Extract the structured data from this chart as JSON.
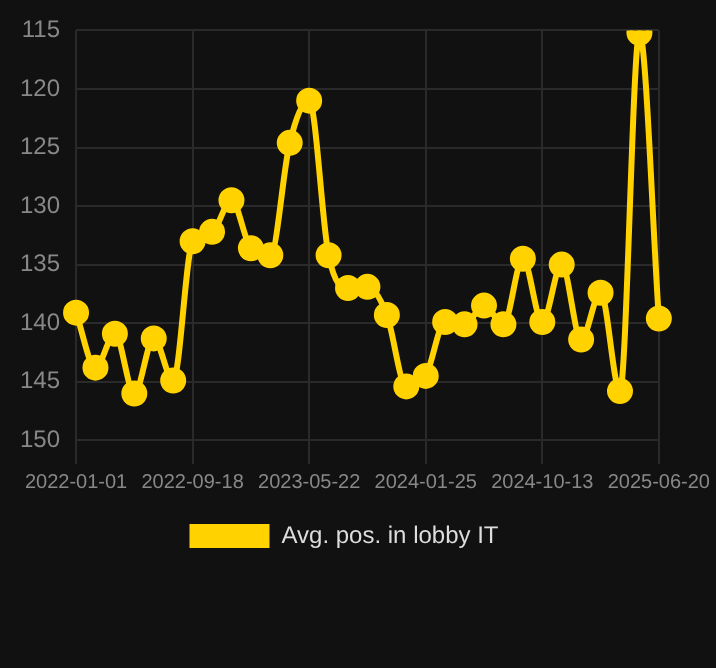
{
  "chart_data": {
    "type": "line",
    "categories": [
      "2022-01-01",
      null,
      null,
      null,
      null,
      null,
      "2022-09-18",
      null,
      null,
      null,
      null,
      null,
      "2023-05-22",
      null,
      null,
      null,
      null,
      null,
      "2024-01-25",
      null,
      null,
      null,
      null,
      null,
      "2024-10-13",
      null,
      null,
      null,
      null,
      null,
      "2025-06-20"
    ],
    "series": [
      {
        "name": "Avg. pos. in lobby IT",
        "color": "#ffd200",
        "values": [
          139.1,
          143.8,
          140.9,
          146.0,
          141.3,
          144.9,
          133.0,
          132.2,
          129.5,
          133.6,
          134.2,
          124.6,
          121.0,
          134.2,
          137.0,
          136.9,
          139.3,
          145.4,
          144.5,
          139.9,
          140.1,
          138.5,
          140.1,
          134.5,
          139.9,
          135.0,
          141.4,
          137.4,
          145.8,
          115.2,
          139.6
        ]
      }
    ],
    "ylim": [
      151,
      115
    ],
    "yticks": [
      115,
      120,
      125,
      130,
      135,
      140,
      145,
      150
    ],
    "grid": true,
    "legend": "bottom",
    "marker": "circle",
    "line_style": "solid"
  }
}
